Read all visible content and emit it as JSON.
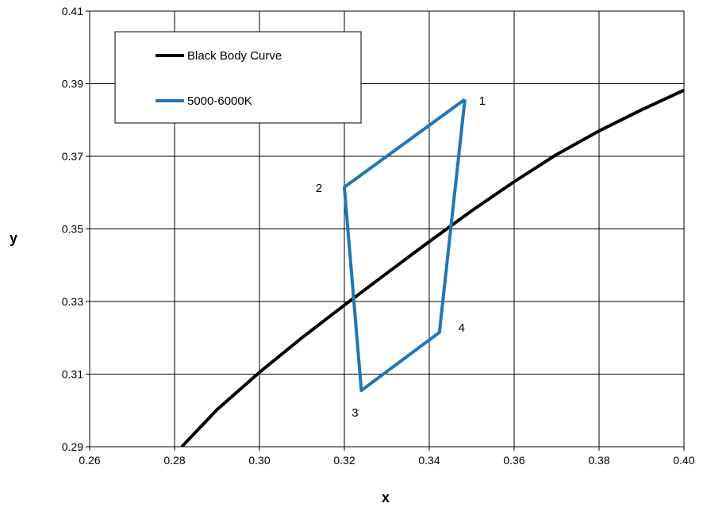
{
  "chart_data": {
    "type": "line",
    "title": "",
    "xlabel": "x",
    "ylabel": "y",
    "xlim": [
      0.26,
      0.4
    ],
    "ylim": [
      0.29,
      0.41
    ],
    "x_ticks": [
      "0.26",
      "0.28",
      "0.30",
      "0.32",
      "0.34",
      "0.36",
      "0.38",
      "0.40"
    ],
    "y_ticks": [
      "0.29",
      "0.31",
      "0.33",
      "0.35",
      "0.37",
      "0.39",
      "0.41"
    ],
    "grid": true,
    "legend_position": "top-left",
    "series": [
      {
        "name": "Black Body Curve",
        "color": "#000000",
        "x": [
          0.2817,
          0.29,
          0.3,
          0.31,
          0.32,
          0.33,
          0.34,
          0.35,
          0.36,
          0.37,
          0.38,
          0.39,
          0.4
        ],
        "y": [
          0.29,
          0.3002,
          0.3105,
          0.32,
          0.329,
          0.3378,
          0.3465,
          0.355,
          0.363,
          0.3705,
          0.377,
          0.3828,
          0.3882
        ]
      },
      {
        "name": "5000-6000K",
        "color": "#1f77b4",
        "closed": true,
        "x": [
          0.3484,
          0.32,
          0.324,
          0.3424,
          0.3484
        ],
        "y": [
          0.3857,
          0.3615,
          0.3055,
          0.3215,
          0.3857
        ]
      }
    ],
    "annotations": [
      {
        "text": "1",
        "x": 0.3484,
        "y": 0.3857
      },
      {
        "text": "2",
        "x": 0.32,
        "y": 0.3615
      },
      {
        "text": "3",
        "x": 0.324,
        "y": 0.3055
      },
      {
        "text": "4",
        "x": 0.3424,
        "y": 0.3215
      }
    ]
  }
}
